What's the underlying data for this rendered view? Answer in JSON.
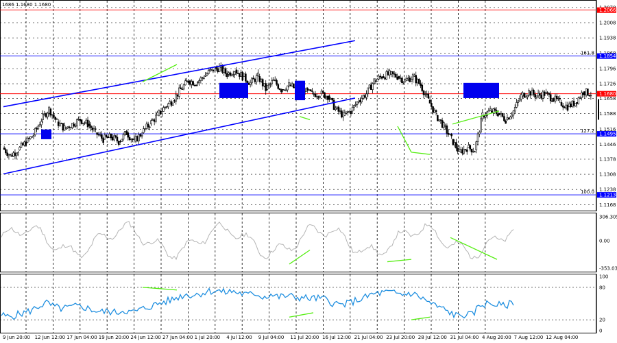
{
  "ohlc_header": "1686 1.1680 1.1680",
  "chart_data": {
    "type": "candlestick",
    "instrument_quote_header": "1686 1.1680 1.1680",
    "price_panel": {
      "ylim": [
        1.115,
        1.21
      ],
      "y_ticks": [
        "1.2078",
        "1.2008",
        "1.1938",
        "1.1868",
        "1.1796",
        "1.1726",
        "1.1658",
        "1.1588",
        "1.1516",
        "1.1446",
        "1.1378",
        "1.1308",
        "1.1238",
        "1.1168"
      ],
      "y_tick_values": [
        1.2078,
        1.2008,
        1.1938,
        1.1868,
        1.1796,
        1.1726,
        1.1658,
        1.1588,
        1.1516,
        1.1446,
        1.1378,
        1.1308,
        1.1238,
        1.1168
      ],
      "price_path": [
        [
          0,
          1.143
        ],
        [
          1,
          1.1395
        ],
        [
          2,
          1.142
        ],
        [
          3,
          1.1455
        ],
        [
          4,
          1.149
        ],
        [
          5,
          1.156
        ],
        [
          6,
          1.161
        ],
        [
          7,
          1.155
        ],
        [
          8,
          1.152
        ],
        [
          9,
          1.154
        ],
        [
          10,
          1.156
        ],
        [
          11,
          1.154
        ],
        [
          12,
          1.15
        ],
        [
          13,
          1.147
        ],
        [
          14,
          1.148
        ],
        [
          15,
          1.146
        ],
        [
          16,
          1.15
        ],
        [
          17,
          1.146
        ],
        [
          18,
          1.15
        ],
        [
          19,
          1.154
        ],
        [
          20,
          1.158
        ],
        [
          21,
          1.162
        ],
        [
          22,
          1.165
        ],
        [
          23,
          1.17
        ],
        [
          24,
          1.174
        ],
        [
          25,
          1.173
        ],
        [
          26,
          1.176
        ],
        [
          27,
          1.179
        ],
        [
          28,
          1.18
        ],
        [
          29,
          1.177
        ],
        [
          30,
          1.179
        ],
        [
          31,
          1.176
        ],
        [
          32,
          1.173
        ],
        [
          33,
          1.176
        ],
        [
          34,
          1.17
        ],
        [
          35,
          1.174
        ],
        [
          36,
          1.17
        ],
        [
          37,
          1.172
        ],
        [
          38,
          1.17
        ],
        [
          39,
          1.169
        ],
        [
          40,
          1.168
        ],
        [
          41,
          1.168
        ],
        [
          42,
          1.167
        ],
        [
          43,
          1.161
        ],
        [
          44,
          1.158
        ],
        [
          45,
          1.16
        ],
        [
          46,
          1.165
        ],
        [
          47,
          1.168
        ],
        [
          48,
          1.174
        ],
        [
          49,
          1.176
        ],
        [
          50,
          1.177
        ],
        [
          51,
          1.176
        ],
        [
          52,
          1.174
        ],
        [
          53,
          1.176
        ],
        [
          54,
          1.172
        ],
        [
          55,
          1.165
        ],
        [
          56,
          1.158
        ],
        [
          57,
          1.153
        ],
        [
          58,
          1.147
        ],
        [
          59,
          1.141
        ],
        [
          60,
          1.143
        ],
        [
          61,
          1.142
        ],
        [
          62,
          1.158
        ],
        [
          63,
          1.16
        ],
        [
          64,
          1.159
        ],
        [
          65,
          1.156
        ],
        [
          66,
          1.16
        ],
        [
          67,
          1.167
        ],
        [
          68,
          1.169
        ],
        [
          69,
          1.167
        ],
        [
          70,
          1.168
        ],
        [
          71,
          1.166
        ],
        [
          72,
          1.164
        ],
        [
          73,
          1.162
        ],
        [
          74,
          1.164
        ],
        [
          75,
          1.169
        ],
        [
          76,
          1.168
        ]
      ],
      "fib_levels": [
        {
          "value": 1.2066,
          "label": "1.2066",
          "fib": "",
          "color": "#ff0000"
        },
        {
          "value": 1.1854,
          "label": "1.1854",
          "fib": "161.8",
          "color": "#0000ff"
        },
        {
          "value": 1.168,
          "label": "1.1680",
          "fib": "",
          "color": "#ff0000"
        },
        {
          "value": 1.1495,
          "label": "1.1495",
          "fib": "127.2",
          "color": "#0000ff"
        },
        {
          "value": 1.1213,
          "label": "1.1213",
          "fib": "100.0",
          "color": "#0000ff"
        }
      ]
    },
    "oscillator_panel": {
      "ylim": [
        -353.035,
        306.3051
      ],
      "y_ticks": [
        "306.3051",
        "0.00",
        "-353.035"
      ],
      "y_tick_values": [
        306.3051,
        0,
        -353.035
      ]
    },
    "rsi_panel": {
      "ylim": [
        0,
        100
      ],
      "y_ticks": [
        "100",
        "80",
        "20",
        "0"
      ],
      "y_tick_values": [
        100,
        80,
        20,
        0
      ]
    },
    "x_ticks": [
      "9 Jun 20:00",
      "12 Jun 12:00",
      "17 Jun 04:00",
      "19 Jun 20:00",
      "24 Jun 12:00",
      "27 Jun 04:00",
      "1 Jul 20:00",
      "4 Jul 12:00",
      "9 Jul 04:00",
      "11 Jul 20:00",
      "16 Jul 12:00",
      "21 Jul 04:00",
      "23 Jul 20:00",
      "28 Jul 12:00",
      "31 Jul 04:00",
      "4 Aug 20:00",
      "7 Aug 12:00",
      "12 Aug 04:00"
    ],
    "colors": {
      "channel": "#0000ff",
      "divergence": "#55ee11",
      "zone": "#0000ee",
      "fib_line": "#0000ff",
      "resistance": "#ff0000",
      "oscillator": "#b4b4b4",
      "rsi": "#1f8fe0"
    }
  }
}
